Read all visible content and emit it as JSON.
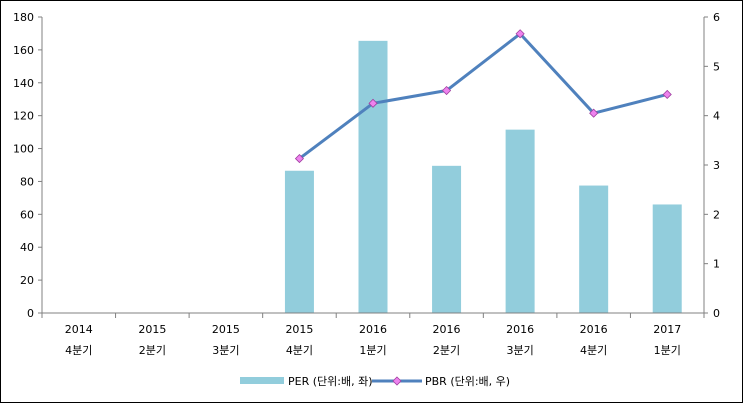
{
  "chart_data": {
    "type": "bar+line",
    "categories": [
      [
        "2014",
        "4분기"
      ],
      [
        "2015",
        "2분기"
      ],
      [
        "2015",
        "3분기"
      ],
      [
        "2015",
        "4분기"
      ],
      [
        "2016",
        "1분기"
      ],
      [
        "2016",
        "2분기"
      ],
      [
        "2016",
        "3분기"
      ],
      [
        "2016",
        "4분기"
      ],
      [
        "2017",
        "1분기"
      ]
    ],
    "series": [
      {
        "name": "PER (단위:배, 좌)",
        "type": "bar",
        "axis": "left",
        "color": "#92CDDC",
        "values": [
          null,
          null,
          null,
          86.5,
          165.5,
          89.5,
          111.5,
          77.5,
          66
        ]
      },
      {
        "name": "PBR (단위:배, 우)",
        "type": "line",
        "axis": "right",
        "color": "#4F81BD",
        "marker_color": "#EE82EE",
        "values": [
          null,
          null,
          null,
          3.13,
          4.25,
          4.51,
          5.66,
          4.05,
          4.43
        ]
      }
    ],
    "y_left": {
      "min": 0,
      "max": 180,
      "step": 20
    },
    "y_right": {
      "min": 0,
      "max": 6,
      "step": 1
    },
    "legend_position": "bottom",
    "grid": false
  }
}
